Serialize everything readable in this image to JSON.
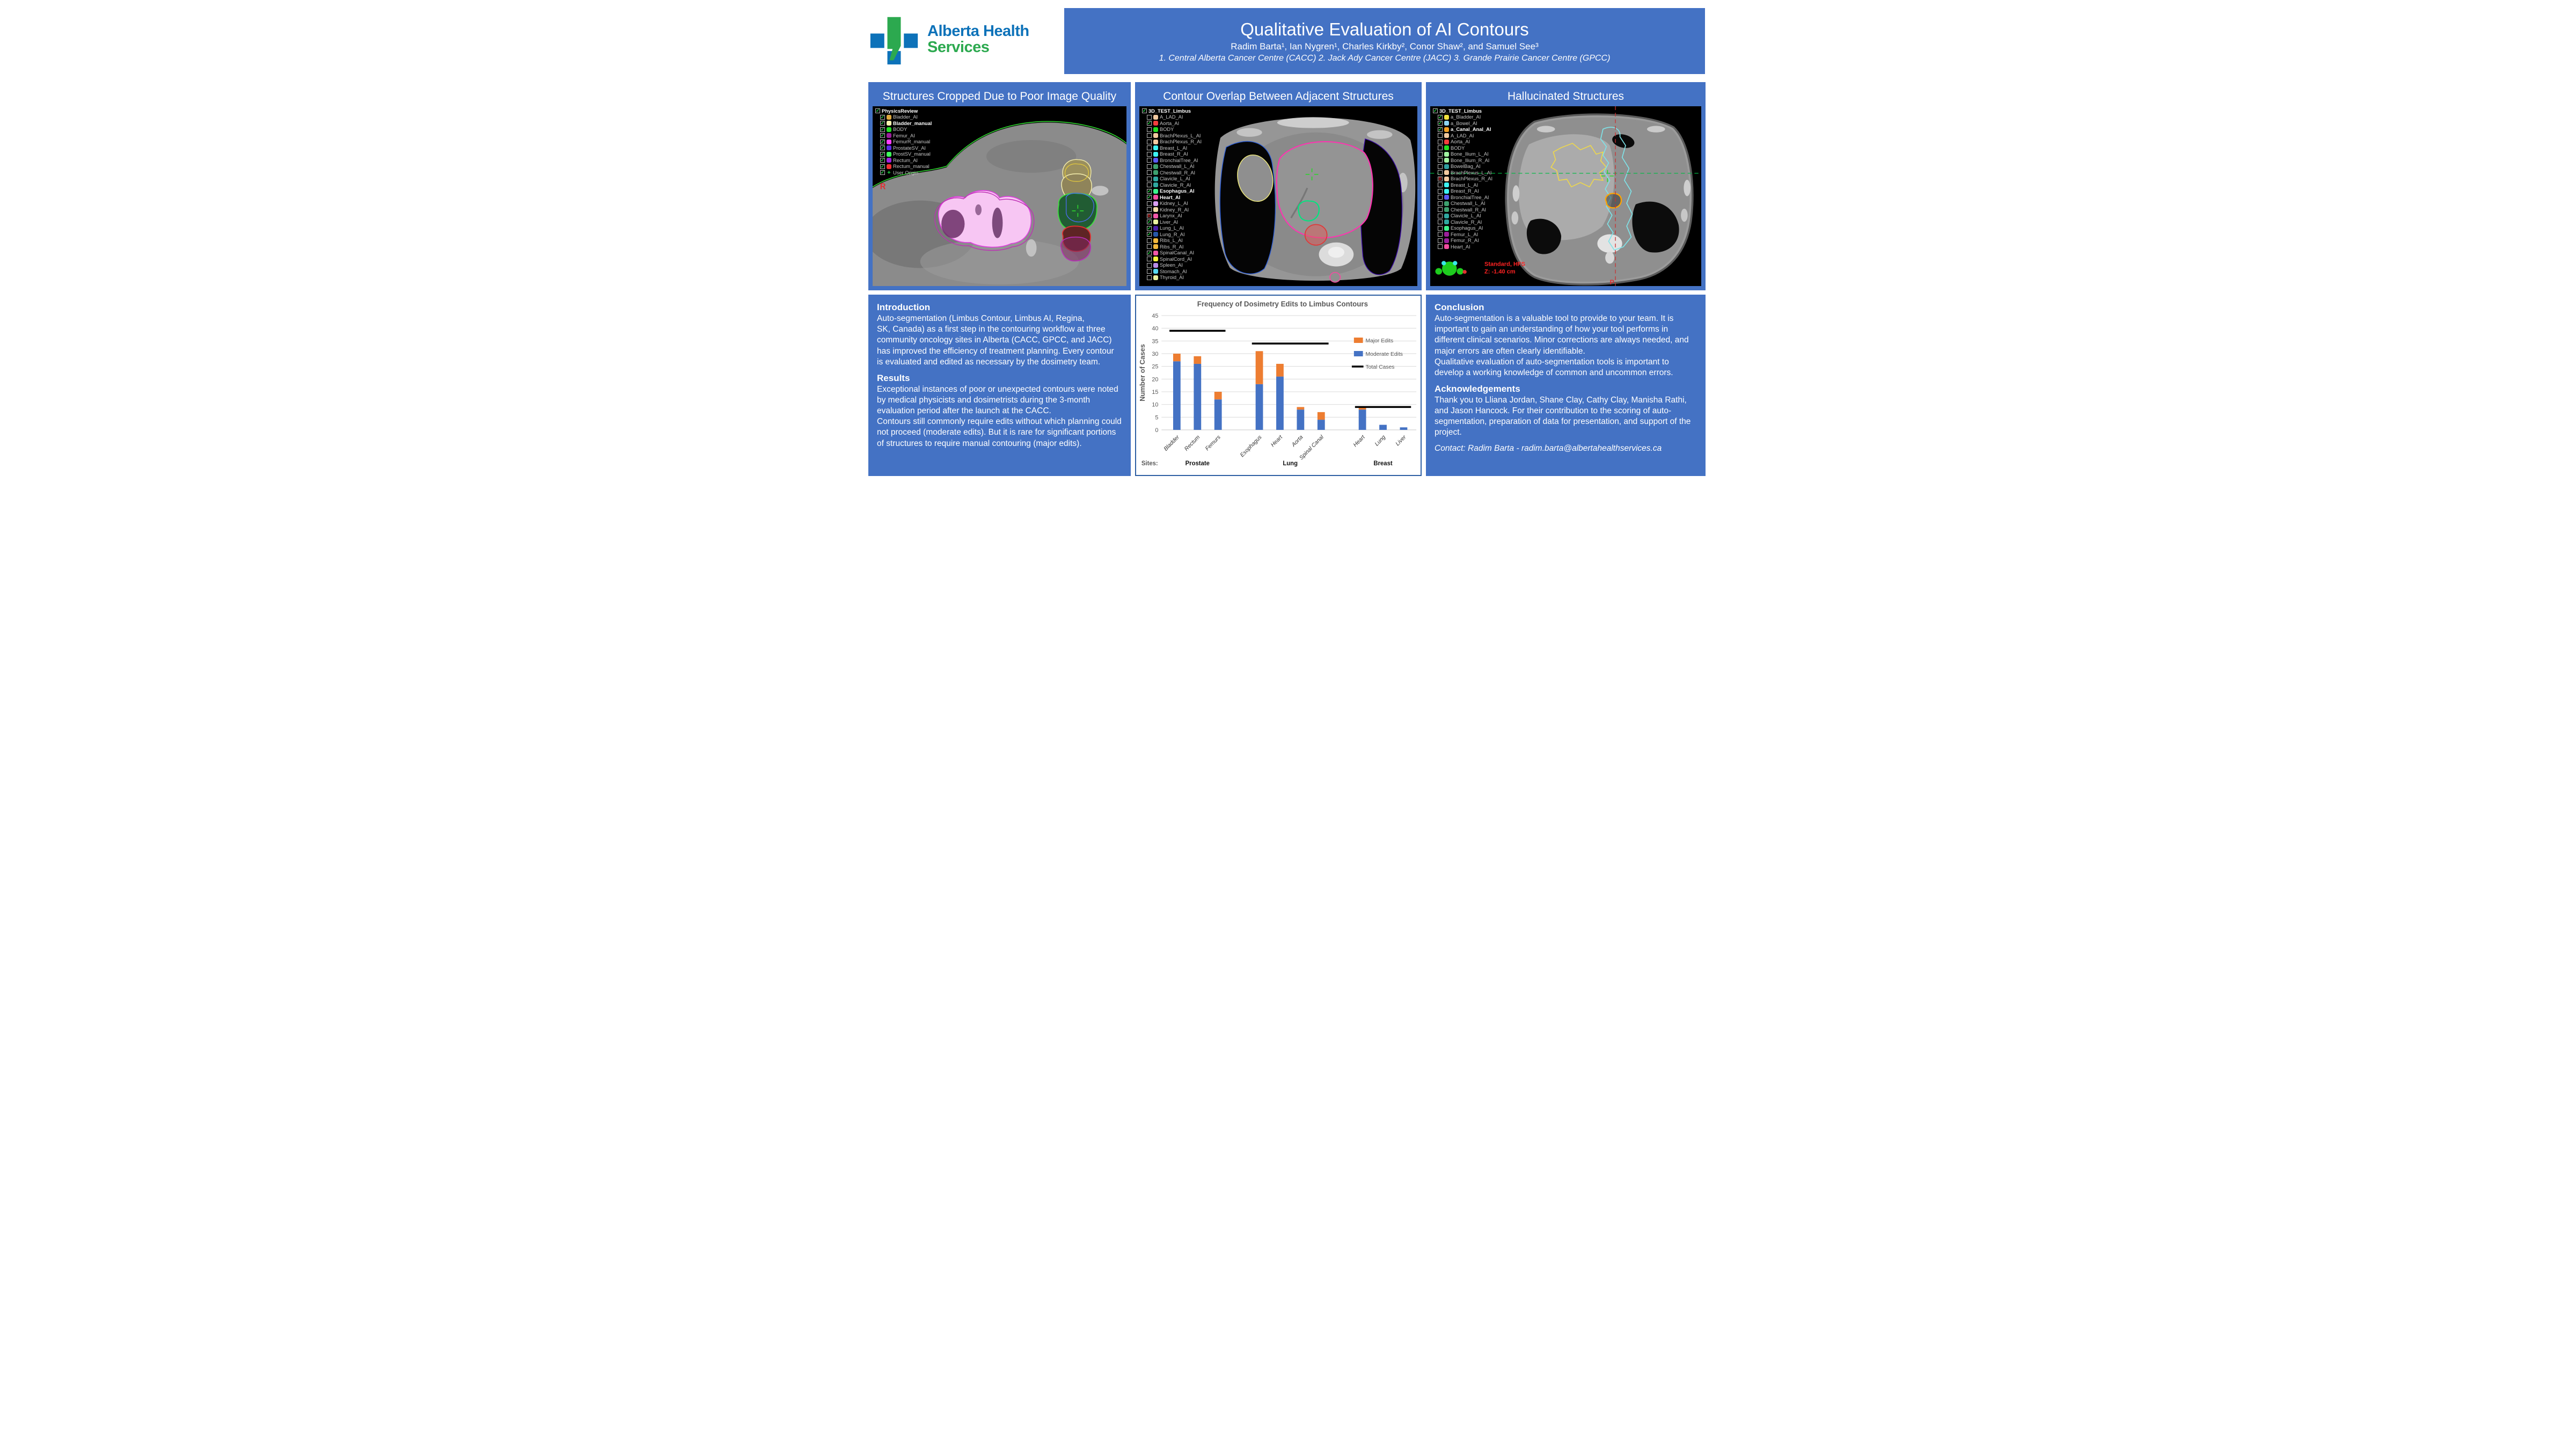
{
  "logo": {
    "line1": "Alberta Health",
    "line2": "Services",
    "blue": "#0D72B9",
    "green": "#2CA94F"
  },
  "banner": {
    "title": "Qualitative Evaluation of AI Contours",
    "authors": "Radim Barta¹, Ian Nygren¹, Charles Kirkby², Conor Shaw², and Samuel See³",
    "affiliations": "1. Central Alberta Cancer Centre (CACC) 2. Jack Ady Cancer Centre (JACC) 3. Grande Prairie Cancer Centre (GPCC)"
  },
  "panels": {
    "cropped": {
      "title": "Structures Cropped Due to Poor Image Quality",
      "tree_header": "PhysicsReview",
      "orientation_label": "R",
      "items": [
        {
          "label": "Bladder_AI",
          "color": "#DFA93D",
          "state": "checked",
          "bold": false
        },
        {
          "label": "Bladder_manual",
          "color": "#F7F3B0",
          "state": "checked",
          "bold": true
        },
        {
          "label": "BODY",
          "color": "#21DD21",
          "state": "checked",
          "bold": false
        },
        {
          "label": "Femur_AI",
          "color": "#9B1F9B",
          "state": "checked",
          "bold": false
        },
        {
          "label": "FemurR_manual",
          "color": "#FF3DFF",
          "state": "checked",
          "bold": false
        },
        {
          "label": "ProstateSV_AI",
          "color": "#5A2BE0",
          "state": "checked",
          "bold": false
        },
        {
          "label": "ProstSV_manual",
          "color": "#3DFF5A",
          "state": "checked",
          "bold": false
        },
        {
          "label": "Rectum_AI",
          "color": "#A020E0",
          "state": "checked",
          "bold": false
        },
        {
          "label": "Rectum_manual",
          "color": "#F03030",
          "state": "checked",
          "bold": false
        },
        {
          "label": "User Origin",
          "color": "#22dd44",
          "state": "checked",
          "bold": false,
          "icon": "crosshair"
        }
      ]
    },
    "overlap": {
      "title": "Contour Overlap Between Adjacent Structures",
      "tree_header": "3D_TEST_Limbus",
      "items": [
        {
          "label": "A_LAD_AI",
          "color": "#F2C9A0",
          "state": "unchecked",
          "bold": false
        },
        {
          "label": "Aorta_AI",
          "color": "#F23D3D",
          "state": "checked",
          "bold": false
        },
        {
          "label": "BODY",
          "color": "#21DD21",
          "state": "unchecked",
          "bold": false
        },
        {
          "label": "BrachPlexus_L_AI",
          "color": "#F2C9A0",
          "state": "unchecked",
          "bold": false
        },
        {
          "label": "BrachPlexus_R_AI",
          "color": "#F2C9A0",
          "state": "unchecked",
          "bold": false
        },
        {
          "label": "Breast_L_AI",
          "color": "#3DF2F2",
          "state": "unchecked",
          "bold": false
        },
        {
          "label": "Breast_R_AI",
          "color": "#3DF2F2",
          "state": "unchecked",
          "bold": false
        },
        {
          "label": "BronchialTree_AI",
          "color": "#5A5AF2",
          "state": "unchecked",
          "bold": false
        },
        {
          "label": "Chestwall_L_AI",
          "color": "#3DA06E",
          "state": "unchecked",
          "bold": false
        },
        {
          "label": "Chestwall_R_AI",
          "color": "#3DA06E",
          "state": "unchecked",
          "bold": false
        },
        {
          "label": "Clavicle_L_AI",
          "color": "#2FA8A0",
          "state": "unchecked",
          "bold": false
        },
        {
          "label": "Clavicle_R_AI",
          "color": "#2FA8A0",
          "state": "unchecked",
          "bold": false
        },
        {
          "label": "Esophagus_AI",
          "color": "#3DF28C",
          "state": "checked",
          "bold": true
        },
        {
          "label": "Heart_AI",
          "color": "#F24DA0",
          "state": "checked",
          "bold": true
        },
        {
          "label": "Kidney_L_AI",
          "color": "#D9A0F2",
          "state": "unchecked",
          "bold": false
        },
        {
          "label": "Kidney_R_AI",
          "color": "#F2DCA8",
          "state": "unchecked",
          "bold": false
        },
        {
          "label": "Larynx_AI",
          "color": "#F257A8",
          "state": "R",
          "bold": false
        },
        {
          "label": "Liver_AI",
          "color": "#EAF2A0",
          "state": "checked",
          "bold": false
        },
        {
          "label": "Lung_L_AI",
          "color": "#4A1FA8",
          "state": "checked",
          "bold": false
        },
        {
          "label": "Lung_R_AI",
          "color": "#2657A8",
          "state": "checked",
          "bold": false
        },
        {
          "label": "Ribs_L_AI",
          "color": "#F2B83D",
          "state": "unchecked",
          "bold": false
        },
        {
          "label": "Ribs_R_AI",
          "color": "#F2B83D",
          "state": "unchecked",
          "bold": false
        },
        {
          "label": "SpinalCanal_AI",
          "color": "#F257A8",
          "state": "checked",
          "bold": false
        },
        {
          "label": "SpinalCord_AI",
          "color": "#F2F23D",
          "state": "unchecked",
          "bold": false
        },
        {
          "label": "Spleen_AI",
          "color": "#B88CE8",
          "state": "unchecked",
          "bold": false
        },
        {
          "label": "Stomach_AI",
          "color": "#57D9F2",
          "state": "unchecked",
          "bold": false
        },
        {
          "label": "Thyroid_AI",
          "color": "#EAF2A0",
          "state": "unchecked",
          "bold": false
        }
      ]
    },
    "hallucinated": {
      "title": "Hallucinated Structures",
      "tree_header": "3D_TEST_Limbus",
      "orientation_label": "P",
      "overlay_line1": "Standard, HFS",
      "overlay_line2": "Z: -1.40 cm",
      "items": [
        {
          "label": "a_Bladder_AI",
          "color": "#F2E23D",
          "state": "checked",
          "bold": false
        },
        {
          "label": "a_Bowel_AI",
          "color": "#8CD4F2",
          "state": "checked",
          "bold": false
        },
        {
          "label": "a_Canal_Anal_AI",
          "color": "#F2A024",
          "state": "checked",
          "bold": true
        },
        {
          "label": "A_LAD_AI",
          "color": "#F2C9A0",
          "state": "unchecked",
          "bold": false
        },
        {
          "label": "Aorta_AI",
          "color": "#F23D3D",
          "state": "unchecked",
          "bold": false
        },
        {
          "label": "BODY",
          "color": "#21DD21",
          "state": "unchecked",
          "bold": false
        },
        {
          "label": "Bone_Ilium_L_AI",
          "color": "#A0F2A0",
          "state": "unchecked",
          "bold": false
        },
        {
          "label": "Bone_Ilium_R_AI",
          "color": "#A0F2A0",
          "state": "unchecked",
          "bold": false
        },
        {
          "label": "BowelBag_AI",
          "color": "#2F9FA0",
          "state": "unchecked",
          "bold": false
        },
        {
          "label": "BrachPlexus_L_AI",
          "color": "#F2C9A0",
          "state": "unchecked",
          "bold": false
        },
        {
          "label": "BrachPlexus_R_AI",
          "color": "#F2C9A0",
          "state": "R",
          "bold": false
        },
        {
          "label": "Breast_L_AI",
          "color": "#3DF2F2",
          "state": "unchecked",
          "bold": false
        },
        {
          "label": "Breast_R_AI",
          "color": "#3DF2F2",
          "state": "unchecked",
          "bold": false
        },
        {
          "label": "BronchialTree_AI",
          "color": "#5A5AF2",
          "state": "unchecked",
          "bold": false
        },
        {
          "label": "Chestwall_L_AI",
          "color": "#3DA06E",
          "state": "unchecked",
          "bold": false
        },
        {
          "label": "Chestwall_R_AI",
          "color": "#3DA06E",
          "state": "unchecked",
          "bold": false
        },
        {
          "label": "Clavicle_L_AI",
          "color": "#2FA8A0",
          "state": "unchecked",
          "bold": false
        },
        {
          "label": "Clavicle_R_AI",
          "color": "#2FA8A0",
          "state": "unchecked",
          "bold": false
        },
        {
          "label": "Esophagus_AI",
          "color": "#3DF28C",
          "state": "unchecked",
          "bold": false
        },
        {
          "label": "Femur_L_AI",
          "color": "#9B1F9B",
          "state": "unchecked",
          "bold": false
        },
        {
          "label": "Femur_R_AI",
          "color": "#9B1F9B",
          "state": "unchecked",
          "bold": false
        },
        {
          "label": "Heart_AI",
          "color": "#F24DA0",
          "state": "unchecked",
          "bold": false
        }
      ]
    }
  },
  "intro_box": {
    "heading1": "Introduction",
    "para1": "Auto-segmentation (Limbus Contour, Limbus AI, Regina,\nSK, Canada) as a first step in the contouring workflow at three community oncology sites in Alberta (CACC, GPCC, and JACC) has improved the efficiency of treatment planning. Every contour is evaluated and edited as necessary by the dosimetry team.",
    "heading2": "Results",
    "para2": "Exceptional instances of poor or unexpected contours were noted by medical physicists and dosimetrists during the 3-month evaluation period after the launch at the CACC.\nContours still commonly require edits without which planning could not proceed (moderate edits). But it is rare for significant portions of structures to require manual contouring (major edits)."
  },
  "conclusion_box": {
    "heading1": "Conclusion",
    "para1": "Auto-segmentation is a valuable tool to provide to your team. It is important to gain an understanding of how your tool performs in different clinical scenarios. Minor corrections are always needed, and major errors are often clearly identifiable.\nQualitative evaluation of auto-segmentation tools is important to develop a working knowledge of common and uncommon errors.",
    "heading2": "Acknowledgements",
    "para2": "Thank you to Lliana Jordan, Shane Clay, Cathy Clay, Manisha Rathi, and Jason Hancock. For their contribution to the scoring of auto-segmentation, preparation of data for presentation, and support of the project.",
    "contact": "Contact: Radim Barta - radim.barta@albertahealthservices.ca"
  },
  "chart_data": {
    "type": "bar",
    "title": "Frequency of Dosimetry Edits to Limbus Contours",
    "ylabel": "Number of Cases",
    "ylim": [
      0,
      45
    ],
    "ytick_step": 5,
    "grid": true,
    "legend_position": "right",
    "categories": [
      "Bladder",
      "Rectum",
      "Femurs",
      "Esophagus",
      "Heart",
      "Aorta",
      "Spinal Canal",
      "Heart",
      "Lung",
      "Liver"
    ],
    "series": [
      {
        "name": "Moderate Edits",
        "color": "#4472C4",
        "values": [
          27,
          26,
          12,
          18,
          21,
          8,
          4,
          8,
          2,
          1
        ]
      },
      {
        "name": "Major Edits",
        "color": "#ED7D31",
        "values": [
          3,
          3,
          3,
          13,
          5,
          1,
          3,
          1,
          0,
          0
        ]
      }
    ],
    "stacked_totals": [
      30,
      29,
      15,
      31,
      26,
      9,
      7,
      9,
      2,
      1
    ],
    "groups": [
      {
        "label": "Prostate",
        "span": [
          0,
          2
        ],
        "total_cases": 39
      },
      {
        "label": "Lung",
        "span": [
          3,
          6
        ],
        "total_cases": 34
      },
      {
        "label": "Breast",
        "span": [
          7,
          9
        ],
        "total_cases": 9
      }
    ],
    "legend": [
      "Major Edits",
      "Moderate Edits",
      "Total Cases"
    ],
    "sites_label": "Sites:"
  }
}
